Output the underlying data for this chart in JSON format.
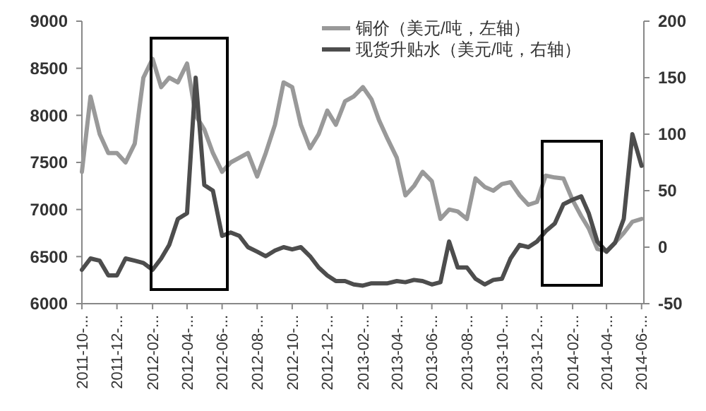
{
  "chart_data": {
    "type": "line",
    "x": [
      "2011-10-01",
      "2011-10-16",
      "2011-11-01",
      "2011-11-16",
      "2011-12-01",
      "2011-12-16",
      "2012-01-01",
      "2012-01-16",
      "2012-02-01",
      "2012-02-16",
      "2012-03-01",
      "2012-03-16",
      "2012-04-01",
      "2012-04-16",
      "2012-05-01",
      "2012-05-16",
      "2012-06-01",
      "2012-06-16",
      "2012-07-01",
      "2012-07-16",
      "2012-08-01",
      "2012-08-16",
      "2012-09-01",
      "2012-09-16",
      "2012-10-01",
      "2012-10-16",
      "2012-11-01",
      "2012-11-16",
      "2012-12-01",
      "2012-12-16",
      "2013-01-01",
      "2013-01-16",
      "2013-02-01",
      "2013-02-16",
      "2013-03-01",
      "2013-03-16",
      "2013-04-01",
      "2013-04-16",
      "2013-05-01",
      "2013-05-16",
      "2013-06-01",
      "2013-06-16",
      "2013-07-01",
      "2013-07-16",
      "2013-08-01",
      "2013-08-16",
      "2013-09-01",
      "2013-09-16",
      "2013-10-01",
      "2013-10-16",
      "2013-11-01",
      "2013-11-16",
      "2013-12-01",
      "2013-12-16",
      "2014-01-01",
      "2014-01-16",
      "2014-02-01",
      "2014-02-16",
      "2014-03-01",
      "2014-03-16",
      "2014-04-01",
      "2014-04-16",
      "2014-05-01",
      "2014-05-16",
      "2014-06-01"
    ],
    "series": [
      {
        "name": "铜价（美元/吨，左轴）",
        "color": "#999999",
        "values": [
          7400,
          8200,
          7800,
          7600,
          7600,
          7500,
          7700,
          8400,
          8600,
          8300,
          8400,
          8350,
          8550,
          8000,
          7850,
          7600,
          7400,
          7500,
          7550,
          7600,
          7350,
          7600,
          7900,
          8350,
          8300,
          7900,
          7650,
          7800,
          8050,
          7900,
          8150,
          8200,
          8300,
          8170,
          7950,
          7750,
          7550,
          7150,
          7250,
          7400,
          7300,
          6900,
          7000,
          6980,
          6900,
          7330,
          7240,
          7200,
          7270,
          7290,
          7150,
          7050,
          7080,
          7360,
          7340,
          7330,
          7100,
          6930,
          6800,
          6580,
          6560,
          6650,
          6750,
          6870,
          6900
        ]
      },
      {
        "name": "现货升贴水（美元/吨，右轴）",
        "color": "#4d4d4d",
        "axis": "y2",
        "values": [
          -20,
          -10,
          -12,
          -25,
          -25,
          -10,
          -12,
          -14,
          -20,
          -10,
          2,
          25,
          30,
          150,
          55,
          50,
          10,
          13,
          10,
          0,
          -4,
          -8,
          -3,
          0,
          -2,
          0,
          -8,
          -18,
          -25,
          -30,
          -30,
          -33,
          -34,
          -32,
          -32,
          -32,
          -30,
          -31,
          -29,
          -30,
          -33,
          -31,
          5,
          -18,
          -18,
          -28,
          -33,
          -29,
          -28,
          -10,
          2,
          0,
          5,
          14,
          21,
          38,
          42,
          45,
          30,
          5,
          -4,
          4,
          25,
          100,
          72
        ]
      }
    ],
    "xlim": [
      "2011-10-01",
      "2014-06-05"
    ],
    "xticks": [
      {
        "value": "2011-10-01",
        "label": "2011-10-..."
      },
      {
        "value": "2011-12-01",
        "label": "2011-12-..."
      },
      {
        "value": "2012-02-01",
        "label": "2012-02-..."
      },
      {
        "value": "2012-04-01",
        "label": "2012-04-..."
      },
      {
        "value": "2012-06-01",
        "label": "2012-06-..."
      },
      {
        "value": "2012-08-01",
        "label": "2012-08-..."
      },
      {
        "value": "2012-10-01",
        "label": "2012-10-..."
      },
      {
        "value": "2012-12-01",
        "label": "2012-12-..."
      },
      {
        "value": "2013-02-01",
        "label": "2013-02-..."
      },
      {
        "value": "2013-04-01",
        "label": "2013-04-..."
      },
      {
        "value": "2013-06-01",
        "label": "2013-06-..."
      },
      {
        "value": "2013-08-01",
        "label": "2013-08-..."
      },
      {
        "value": "2013-10-01",
        "label": "2013-10-..."
      },
      {
        "value": "2013-12-01",
        "label": "2013-12-..."
      },
      {
        "value": "2014-02-01",
        "label": "2014-02-..."
      },
      {
        "value": "2014-04-01",
        "label": "2014-04-..."
      },
      {
        "value": "2014-06-01",
        "label": "2014-06-..."
      }
    ],
    "ylim": [
      6000,
      9000
    ],
    "yticks": [
      6000,
      6500,
      7000,
      7500,
      8000,
      8500,
      9000
    ],
    "y2lim": [
      -50,
      200
    ],
    "y2ticks": [
      -50,
      0,
      50,
      100,
      150,
      200
    ],
    "legend": "top",
    "grid": false
  }
}
